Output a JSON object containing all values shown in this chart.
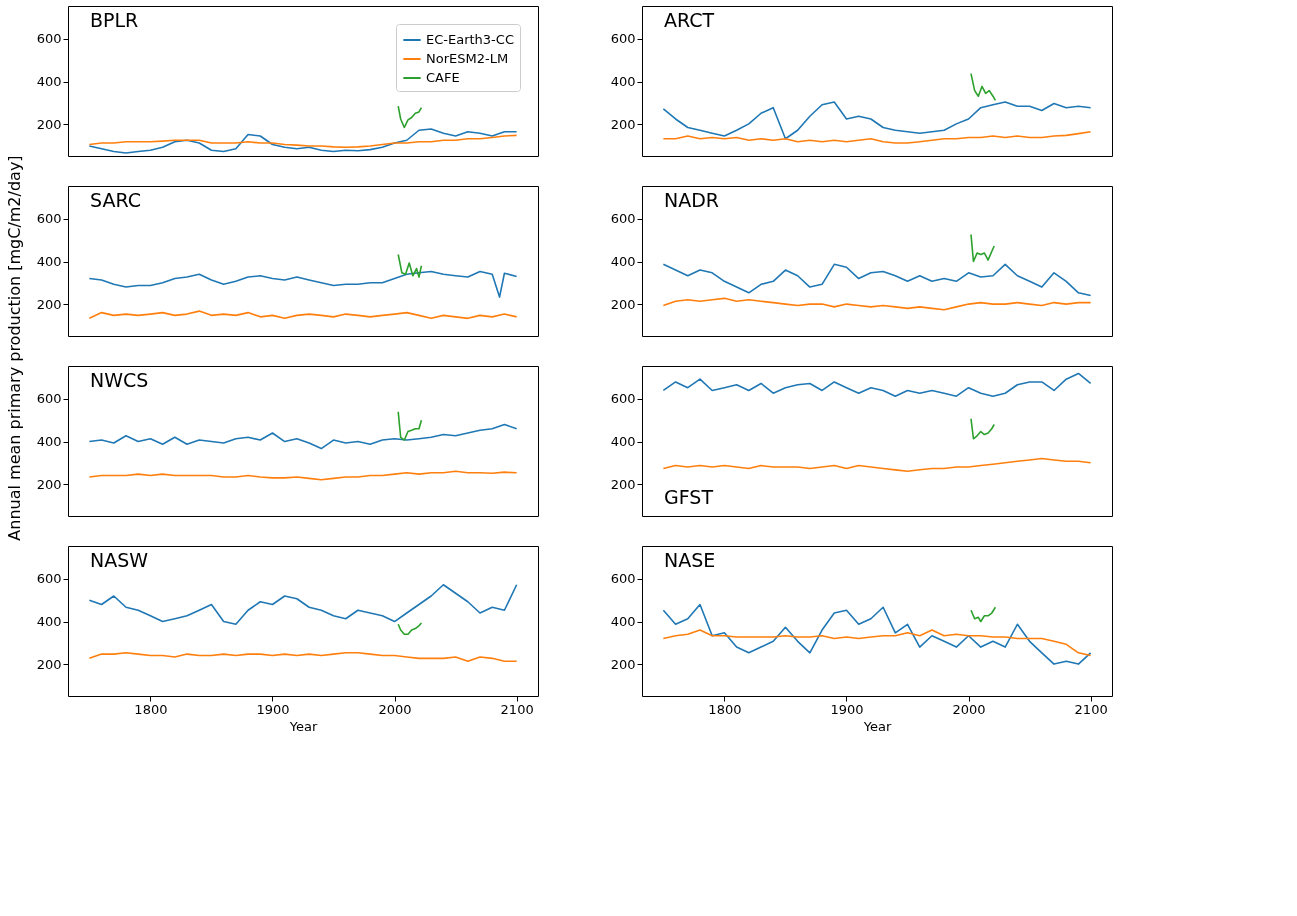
{
  "chart_data": [
    {
      "type": "line",
      "title": "BPLR",
      "ylabel": "Annual mean primary production [mgC/m2/day]",
      "xlim": [
        1732.5,
        2117.5
      ],
      "ylim": [
        50,
        755
      ],
      "xticks": [
        1800,
        1900,
        2000,
        2100
      ],
      "yticks": [
        200,
        400,
        600
      ],
      "grid": false,
      "tick_labels": "y",
      "legend": "top right",
      "x": [
        1750,
        1760,
        1770,
        1780,
        1790,
        1800,
        1810,
        1820,
        1830,
        1840,
        1850,
        1860,
        1870,
        1880,
        1890,
        1900,
        1910,
        1920,
        1930,
        1940,
        1950,
        1960,
        1970,
        1980,
        1990,
        2000,
        2010,
        2020,
        2030,
        2040,
        2050,
        2060,
        2070,
        2080,
        2090,
        2100
      ],
      "series": [
        {
          "name": "EC-Earth3-CC",
          "color": "#1f77b4",
          "values": [
            97,
            84,
            71,
            64,
            71,
            77,
            91,
            117,
            124,
            111,
            77,
            71,
            84,
            151,
            144,
            104,
            91,
            84,
            91,
            77,
            71,
            77,
            75,
            80,
            91,
            111,
            124,
            171,
            177,
            157,
            144,
            164,
            157,
            144,
            164,
            164
          ]
        },
        {
          "name": "NorESM2-LM",
          "color": "#ff7f0e",
          "values": [
            104,
            111,
            111,
            117,
            117,
            117,
            120,
            124,
            124,
            124,
            111,
            111,
            111,
            117,
            111,
            111,
            104,
            101,
            97,
            97,
            93,
            91,
            93,
            97,
            104,
            111,
            111,
            117,
            117,
            124,
            124,
            131,
            131,
            137,
            144,
            147
          ]
        },
        {
          "name": "CAFE",
          "color": "#2ca02c",
          "x": [
            2003,
            2005,
            2008,
            2011,
            2014,
            2017,
            2020,
            2022
          ],
          "values": [
            284,
            224,
            184,
            220,
            231,
            251,
            257,
            277
          ]
        }
      ]
    },
    {
      "type": "line",
      "title": "ARCT",
      "xlim": [
        1732.5,
        2117.5
      ],
      "ylim": [
        50,
        755
      ],
      "xticks": [
        1800,
        1900,
        2000,
        2100
      ],
      "yticks": [
        200,
        400,
        600
      ],
      "grid": false,
      "tick_labels": "y",
      "x": [
        1750,
        1760,
        1770,
        1780,
        1790,
        1800,
        1810,
        1820,
        1830,
        1840,
        1850,
        1860,
        1870,
        1880,
        1890,
        1900,
        1910,
        1920,
        1930,
        1940,
        1950,
        1960,
        1970,
        1980,
        1990,
        2000,
        2010,
        2020,
        2030,
        2040,
        2050,
        2060,
        2070,
        2080,
        2090,
        2100
      ],
      "series": [
        {
          "color": "#1f77b4",
          "values": [
            271,
            224,
            184,
            171,
            157,
            144,
            171,
            201,
            251,
            277,
            131,
            171,
            237,
            291,
            304,
            224,
            237,
            224,
            184,
            171,
            164,
            157,
            164,
            171,
            201,
            224,
            277,
            291,
            304,
            284,
            284,
            264,
            297,
            277,
            284,
            277
          ]
        },
        {
          "color": "#ff7f0e",
          "values": [
            131,
            131,
            144,
            131,
            137,
            131,
            137,
            124,
            131,
            124,
            131,
            117,
            124,
            117,
            124,
            117,
            124,
            131,
            117,
            111,
            111,
            117,
            124,
            131,
            131,
            137,
            137,
            144,
            137,
            144,
            137,
            137,
            144,
            147,
            155,
            164
          ]
        },
        {
          "color": "#2ca02c",
          "x": [
            2002,
            2005,
            2008,
            2011,
            2014,
            2017,
            2020,
            2022
          ],
          "values": [
            437,
            357,
            331,
            377,
            344,
            357,
            331,
            311
          ]
        }
      ]
    },
    {
      "type": "line",
      "title": "SARC",
      "xlim": [
        1732.5,
        2117.5
      ],
      "ylim": [
        50,
        755
      ],
      "xticks": [
        1800,
        1900,
        2000,
        2100
      ],
      "yticks": [
        200,
        400,
        600
      ],
      "grid": false,
      "tick_labels": "y",
      "x": [
        1750,
        1760,
        1770,
        1780,
        1790,
        1800,
        1810,
        1820,
        1830,
        1840,
        1850,
        1860,
        1870,
        1880,
        1890,
        1900,
        1910,
        1920,
        1930,
        1940,
        1950,
        1960,
        1970,
        1980,
        1990,
        2000,
        2010,
        2020,
        2030,
        2040,
        2050,
        2060,
        2070,
        2080,
        2090,
        2100
      ],
      "series": [
        {
          "color": "#1f77b4",
          "x": [
            1750,
            1760,
            1770,
            1780,
            1790,
            1800,
            1810,
            1820,
            1830,
            1840,
            1850,
            1860,
            1870,
            1880,
            1890,
            1900,
            1910,
            1920,
            1930,
            1940,
            1950,
            1960,
            1970,
            1980,
            1990,
            2000,
            2010,
            2020,
            2030,
            2040,
            2050,
            2060,
            2070,
            2080,
            2086,
            2090,
            2100
          ],
          "values": [
            320,
            313,
            293,
            280,
            287,
            287,
            300,
            320,
            327,
            340,
            313,
            293,
            307,
            327,
            333,
            320,
            313,
            327,
            313,
            300,
            287,
            293,
            293,
            300,
            300,
            320,
            340,
            347,
            353,
            340,
            333,
            327,
            353,
            340,
            233,
            345,
            330
          ]
        },
        {
          "color": "#ff7f0e",
          "values": [
            133,
            160,
            147,
            153,
            147,
            153,
            160,
            147,
            153,
            167,
            147,
            153,
            147,
            160,
            140,
            147,
            133,
            147,
            153,
            147,
            140,
            153,
            147,
            140,
            147,
            153,
            160,
            147,
            133,
            147,
            140,
            133,
            147,
            140,
            153,
            140
          ]
        },
        {
          "color": "#2ca02c",
          "x": [
            2003,
            2006,
            2009,
            2012,
            2015,
            2018,
            2020,
            2022
          ],
          "values": [
            433,
            347,
            340,
            393,
            333,
            367,
            327,
            380
          ]
        }
      ]
    },
    {
      "type": "line",
      "title": "NADR",
      "xlim": [
        1732.5,
        2117.5
      ],
      "ylim": [
        50,
        755
      ],
      "xticks": [
        1800,
        1900,
        2000,
        2100
      ],
      "yticks": [
        200,
        400,
        600
      ],
      "grid": false,
      "tick_labels": "y",
      "x": [
        1750,
        1760,
        1770,
        1780,
        1790,
        1800,
        1810,
        1820,
        1830,
        1840,
        1850,
        1860,
        1870,
        1880,
        1890,
        1900,
        1910,
        1920,
        1930,
        1940,
        1950,
        1960,
        1970,
        1980,
        1990,
        2000,
        2010,
        2020,
        2030,
        2040,
        2050,
        2060,
        2070,
        2080,
        2090,
        2100
      ],
      "series": [
        {
          "color": "#1f77b4",
          "values": [
            387,
            360,
            333,
            360,
            347,
            307,
            280,
            253,
            293,
            307,
            360,
            333,
            280,
            293,
            387,
            373,
            320,
            347,
            353,
            333,
            307,
            333,
            307,
            320,
            307,
            347,
            327,
            333,
            387,
            333,
            307,
            280,
            347,
            307,
            253,
            240
          ]
        },
        {
          "color": "#ff7f0e",
          "values": [
            193,
            213,
            220,
            213,
            220,
            227,
            213,
            220,
            213,
            207,
            200,
            193,
            200,
            200,
            187,
            200,
            193,
            187,
            193,
            187,
            180,
            187,
            180,
            173,
            187,
            200,
            207,
            200,
            200,
            207,
            200,
            193,
            207,
            200,
            207,
            207
          ]
        },
        {
          "color": "#2ca02c",
          "x": [
            2002,
            2004,
            2007,
            2010,
            2013,
            2016,
            2019,
            2021
          ],
          "values": [
            527,
            400,
            440,
            433,
            440,
            407,
            447,
            473
          ]
        }
      ]
    },
    {
      "type": "line",
      "title": "NWCS",
      "xlim": [
        1732.5,
        2117.5
      ],
      "ylim": [
        50,
        755
      ],
      "xticks": [
        1800,
        1900,
        2000,
        2100
      ],
      "yticks": [
        200,
        400,
        600
      ],
      "grid": false,
      "tick_labels": "y",
      "x": [
        1750,
        1760,
        1770,
        1780,
        1790,
        1800,
        1810,
        1820,
        1830,
        1840,
        1850,
        1860,
        1870,
        1880,
        1890,
        1900,
        1910,
        1920,
        1930,
        1940,
        1950,
        1960,
        1970,
        1980,
        1990,
        2000,
        2010,
        2020,
        2030,
        2040,
        2050,
        2060,
        2070,
        2080,
        2090,
        2100
      ],
      "series": [
        {
          "color": "#1f77b4",
          "values": [
            400,
            407,
            393,
            427,
            400,
            413,
            387,
            420,
            387,
            407,
            400,
            393,
            413,
            420,
            407,
            440,
            400,
            413,
            393,
            367,
            407,
            393,
            400,
            387,
            407,
            413,
            407,
            413,
            420,
            433,
            427,
            440,
            453,
            460,
            480,
            460
          ]
        },
        {
          "color": "#ff7f0e",
          "values": [
            233,
            240,
            240,
            240,
            247,
            240,
            247,
            240,
            240,
            240,
            240,
            233,
            233,
            240,
            233,
            229,
            229,
            233,
            227,
            220,
            227,
            233,
            233,
            240,
            240,
            247,
            253,
            247,
            253,
            253,
            260,
            253,
            253,
            251,
            256,
            253
          ]
        },
        {
          "color": "#2ca02c",
          "x": [
            2003,
            2005,
            2008,
            2011,
            2014,
            2017,
            2020,
            2022
          ],
          "values": [
            540,
            420,
            407,
            447,
            453,
            460,
            460,
            500
          ]
        }
      ]
    },
    {
      "type": "line",
      "title": "GFST",
      "xlim": [
        1732.5,
        2117.5
      ],
      "ylim": [
        50,
        755
      ],
      "xticks": [
        1800,
        1900,
        2000,
        2100
      ],
      "yticks": [
        200,
        400,
        600
      ],
      "grid": false,
      "tick_labels": "y",
      "x": [
        1750,
        1760,
        1770,
        1780,
        1790,
        1800,
        1810,
        1820,
        1830,
        1840,
        1850,
        1860,
        1870,
        1880,
        1890,
        1900,
        1910,
        1920,
        1930,
        1940,
        1950,
        1960,
        1970,
        1980,
        1990,
        2000,
        2010,
        2020,
        2030,
        2040,
        2050,
        2060,
        2070,
        2080,
        2090,
        2100
      ],
      "series": [
        {
          "color": "#1f77b4",
          "values": [
            640,
            680,
            653,
            693,
            640,
            653,
            667,
            640,
            673,
            627,
            653,
            667,
            673,
            640,
            680,
            653,
            627,
            653,
            640,
            613,
            640,
            627,
            640,
            627,
            613,
            653,
            627,
            613,
            627,
            667,
            680,
            680,
            640,
            693,
            720,
            673
          ]
        },
        {
          "color": "#ff7f0e",
          "values": [
            273,
            287,
            280,
            287,
            280,
            287,
            280,
            273,
            287,
            280,
            280,
            280,
            273,
            280,
            287,
            273,
            287,
            280,
            273,
            267,
            260,
            267,
            273,
            273,
            280,
            280,
            287,
            293,
            300,
            307,
            313,
            320,
            313,
            307,
            307,
            300
          ]
        },
        {
          "color": "#2ca02c",
          "x": [
            2002,
            2004,
            2007,
            2010,
            2013,
            2016,
            2019,
            2021
          ],
          "values": [
            507,
            413,
            427,
            447,
            433,
            440,
            460,
            480
          ]
        }
      ]
    },
    {
      "type": "line",
      "title": "NASW",
      "xlabel": "Year",
      "xlim": [
        1732.5,
        2117.5
      ],
      "ylim": [
        50,
        755
      ],
      "xticks": [
        1800,
        1900,
        2000,
        2100
      ],
      "yticks": [
        200,
        400,
        600
      ],
      "grid": false,
      "x": [
        1750,
        1760,
        1770,
        1780,
        1790,
        1800,
        1810,
        1820,
        1830,
        1840,
        1850,
        1860,
        1870,
        1880,
        1890,
        1900,
        1910,
        1920,
        1930,
        1940,
        1950,
        1960,
        1970,
        1980,
        1990,
        2000,
        2010,
        2020,
        2030,
        2040,
        2050,
        2060,
        2070,
        2080,
        2090,
        2100
      ],
      "series": [
        {
          "color": "#1f77b4",
          "values": [
            500,
            480,
            520,
            467,
            453,
            427,
            400,
            413,
            427,
            453,
            480,
            400,
            387,
            453,
            493,
            480,
            520,
            507,
            467,
            453,
            427,
            413,
            453,
            440,
            427,
            400,
            440,
            480,
            520,
            573,
            533,
            493,
            440,
            467,
            453,
            573
          ]
        },
        {
          "color": "#ff7f0e",
          "values": [
            227,
            247,
            247,
            253,
            247,
            240,
            240,
            233,
            247,
            240,
            240,
            247,
            240,
            247,
            247,
            240,
            247,
            240,
            247,
            240,
            247,
            253,
            253,
            247,
            240,
            240,
            233,
            227,
            227,
            227,
            233,
            213,
            233,
            227,
            213,
            213
          ]
        },
        {
          "color": "#2ca02c",
          "x": [
            2003,
            2005,
            2008,
            2011,
            2014,
            2017,
            2020,
            2022
          ],
          "values": [
            387,
            360,
            340,
            340,
            360,
            367,
            380,
            393
          ]
        }
      ]
    },
    {
      "type": "line",
      "title": "NASE",
      "xlabel": "Year",
      "xlim": [
        1732.5,
        2117.5
      ],
      "ylim": [
        50,
        755
      ],
      "xticks": [
        1800,
        1900,
        2000,
        2100
      ],
      "yticks": [
        200,
        400,
        600
      ],
      "grid": false,
      "x": [
        1750,
        1760,
        1770,
        1780,
        1790,
        1800,
        1810,
        1820,
        1830,
        1840,
        1850,
        1860,
        1870,
        1880,
        1890,
        1900,
        1910,
        1920,
        1930,
        1940,
        1950,
        1960,
        1970,
        1980,
        1990,
        2000,
        2010,
        2020,
        2030,
        2040,
        2050,
        2060,
        2070,
        2080,
        2090,
        2100
      ],
      "series": [
        {
          "color": "#1f77b4",
          "values": [
            453,
            387,
            413,
            480,
            333,
            347,
            280,
            253,
            280,
            307,
            373,
            307,
            253,
            360,
            440,
            453,
            387,
            413,
            467,
            347,
            387,
            280,
            333,
            307,
            280,
            333,
            280,
            307,
            280,
            387,
            307,
            253,
            200,
            213,
            200,
            253
          ]
        },
        {
          "color": "#ff7f0e",
          "values": [
            320,
            333,
            340,
            360,
            333,
            333,
            327,
            327,
            327,
            327,
            333,
            327,
            327,
            333,
            320,
            327,
            320,
            327,
            333,
            333,
            347,
            333,
            360,
            333,
            340,
            333,
            333,
            327,
            327,
            320,
            320,
            320,
            307,
            293,
            253,
            240
          ]
        },
        {
          "color": "#2ca02c",
          "x": [
            2002,
            2005,
            2008,
            2010,
            2013,
            2016,
            2019,
            2022
          ],
          "values": [
            453,
            413,
            420,
            400,
            427,
            427,
            440,
            467
          ]
        }
      ]
    }
  ]
}
